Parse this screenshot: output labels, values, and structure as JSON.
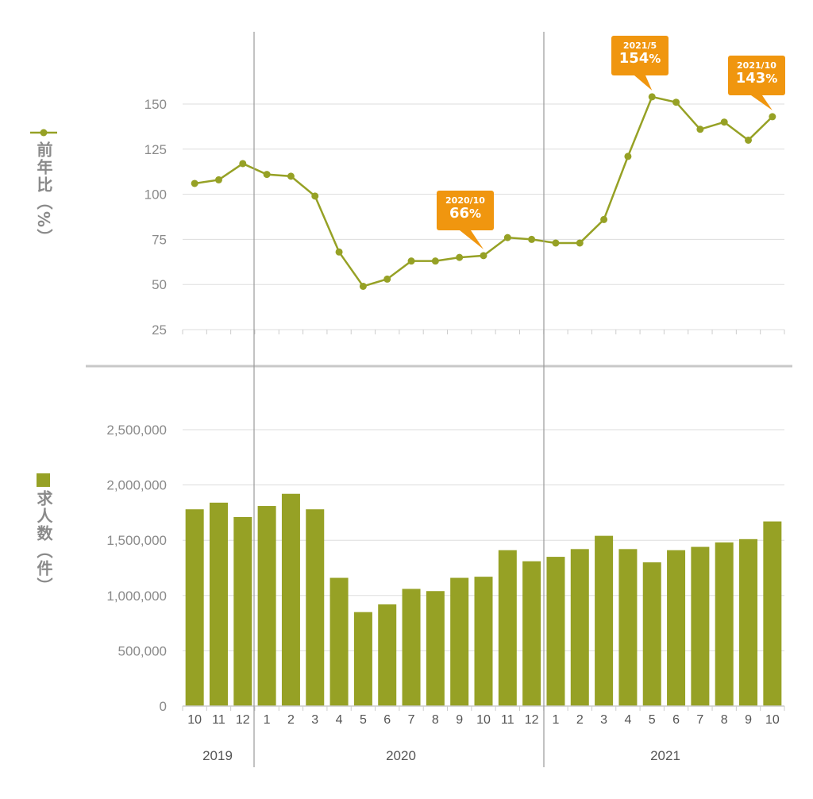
{
  "chart_data": [
    {
      "type": "line",
      "ylabel": "前年比（%）",
      "ylim": [
        25,
        150
      ],
      "yticks": [
        "25",
        "50",
        "75",
        "100",
        "125",
        "150"
      ],
      "x": [
        "2019/10",
        "2019/11",
        "2019/12",
        "2020/1",
        "2020/2",
        "2020/3",
        "2020/4",
        "2020/5",
        "2020/6",
        "2020/7",
        "2020/8",
        "2020/9",
        "2020/10",
        "2020/11",
        "2020/12",
        "2021/1",
        "2021/2",
        "2021/3",
        "2021/4",
        "2021/5",
        "2021/6",
        "2021/7",
        "2021/8",
        "2021/9",
        "2021/10"
      ],
      "values": [
        106,
        108,
        117,
        111,
        110,
        99,
        68,
        49,
        53,
        63,
        63,
        65,
        66,
        76,
        75,
        73,
        73,
        86,
        121,
        154,
        151,
        136,
        140,
        130,
        143
      ],
      "color": "#96a125",
      "annotations": [
        {
          "date": "2020/10",
          "value": "66",
          "unit": "%"
        },
        {
          "date": "2021/5",
          "value": "154",
          "unit": "%"
        },
        {
          "date": "2021/10",
          "value": "143",
          "unit": "%"
        }
      ],
      "annotation_color": "#f0960f"
    },
    {
      "type": "bar",
      "ylabel": "求人数（件）",
      "ylim": [
        0,
        2500000
      ],
      "yticks": [
        "0",
        "500,000",
        "1,000,000",
        "1,500,000",
        "2,000,000",
        "2,500,000"
      ],
      "x": [
        "2019/10",
        "2019/11",
        "2019/12",
        "2020/1",
        "2020/2",
        "2020/3",
        "2020/4",
        "2020/5",
        "2020/6",
        "2020/7",
        "2020/8",
        "2020/9",
        "2020/10",
        "2020/11",
        "2020/12",
        "2021/1",
        "2021/2",
        "2021/3",
        "2021/4",
        "2021/5",
        "2021/6",
        "2021/7",
        "2021/8",
        "2021/9",
        "2021/10"
      ],
      "values": [
        1780000,
        1840000,
        1710000,
        1810000,
        1920000,
        1780000,
        1160000,
        850000,
        920000,
        1060000,
        1040000,
        1160000,
        1170000,
        1410000,
        1310000,
        1350000,
        1420000,
        1540000,
        1420000,
        1300000,
        1410000,
        1440000,
        1480000,
        1510000,
        1670000
      ],
      "color": "#96a125"
    }
  ],
  "month_labels": [
    "10",
    "11",
    "12",
    "1",
    "2",
    "3",
    "4",
    "5",
    "6",
    "7",
    "8",
    "9",
    "10",
    "11",
    "12",
    "1",
    "2",
    "3",
    "4",
    "5",
    "6",
    "7",
    "8",
    "9",
    "10"
  ],
  "year_labels": [
    "2019",
    "2020",
    "2021"
  ]
}
